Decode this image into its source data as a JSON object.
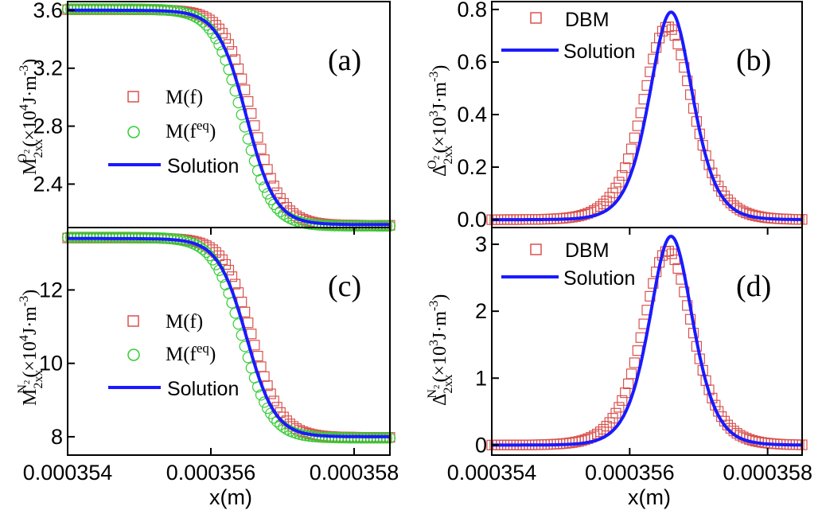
{
  "colors": {
    "dbm": "#d9534f",
    "feq": "#33cc33",
    "solution": "#1a1aff",
    "axis": "#000000"
  },
  "x_axis": {
    "label": "x(m)",
    "range": [
      0.000354,
      0.0003585
    ],
    "ticks": [
      0.000354,
      0.000356,
      0.000358
    ],
    "tick_labels": [
      "0.000354",
      "0.000356",
      "0.000358"
    ]
  },
  "chart_data": [
    {
      "id": "a",
      "type": "line",
      "panel_label": "(a)",
      "ylabel": "M2xx^O2 (×10^4 J·m^-3)",
      "ylim": [
        2.1,
        3.66
      ],
      "yticks": [
        2.4,
        2.8,
        3.2,
        3.6
      ],
      "ytick_labels": [
        "2.4",
        "2.8",
        "3.2",
        "3.6"
      ],
      "profile": {
        "kind": "tanh",
        "low": 2.12,
        "high": 3.6,
        "center": 0.0003565,
        "width": 4e-07
      },
      "series": [
        {
          "name": "M(f)",
          "marker": "square",
          "offset": 8e-08,
          "amp": 1.006
        },
        {
          "name": "M(f^eq)",
          "marker": "circle",
          "offset": -6e-08,
          "amp": 1.012
        },
        {
          "name": "Solution",
          "marker": "line",
          "offset": 0,
          "amp": 1.0
        }
      ],
      "legend": {
        "mf": "M(f)",
        "mfeq_base": "M(f",
        "mfeq_sup": "eq",
        "close": ")",
        "sol": "Solution"
      }
    },
    {
      "id": "b",
      "type": "line",
      "panel_label": "(b)",
      "ylabel": "Δ2xx^O2 (×10^3 J·m^-3)",
      "ylim": [
        -0.03,
        0.83
      ],
      "yticks": [
        0.0,
        0.2,
        0.4,
        0.6,
        0.8
      ],
      "ytick_labels": [
        "0.0",
        "0.2",
        "0.4",
        "0.6",
        "0.8"
      ],
      "profile": {
        "kind": "peak",
        "base": 0.0,
        "peak": 0.79,
        "center": 0.0003566,
        "width": 4.2e-07
      },
      "series": [
        {
          "name": "DBM",
          "marker": "square",
          "offset": -5e-08,
          "amp": 0.93,
          "widen": 1.15
        },
        {
          "name": "Solution",
          "marker": "line",
          "offset": 0,
          "amp": 1.0,
          "widen": 1.0
        }
      ],
      "legend": {
        "dbm": "DBM",
        "sol": "Solution"
      }
    },
    {
      "id": "c",
      "type": "line",
      "panel_label": "(c)",
      "ylabel": "M2xx^N2 (×10^4 J·m^-3)",
      "ylim": [
        7.5,
        13.7
      ],
      "yticks": [
        8,
        10,
        12
      ],
      "ytick_labels": [
        "8",
        "10",
        "12"
      ],
      "profile": {
        "kind": "tanh",
        "low": 8.0,
        "high": 13.4,
        "center": 0.0003565,
        "width": 4e-07
      },
      "series": [
        {
          "name": "M(f)",
          "marker": "square",
          "offset": 8e-08,
          "amp": 1.006
        },
        {
          "name": "M(f^eq)",
          "marker": "circle",
          "offset": -6e-08,
          "amp": 1.012
        },
        {
          "name": "Solution",
          "marker": "line",
          "offset": 0,
          "amp": 1.0
        }
      ],
      "legend": {
        "mf": "M(f)",
        "mfeq_base": "M(f",
        "mfeq_sup": "eq",
        "close": ")",
        "sol": "Solution"
      }
    },
    {
      "id": "d",
      "type": "line",
      "panel_label": "(d)",
      "ylabel": "Δ2xx^N2 (×10^3 J·m^-3)",
      "ylim": [
        -0.15,
        3.25
      ],
      "yticks": [
        0,
        1,
        2,
        3
      ],
      "ytick_labels": [
        "0",
        "1",
        "2",
        "3"
      ],
      "profile": {
        "kind": "peak",
        "base": 0.0,
        "peak": 3.12,
        "center": 0.0003566,
        "width": 4.2e-07
      },
      "series": [
        {
          "name": "DBM",
          "marker": "square",
          "offset": -5e-08,
          "amp": 0.93,
          "widen": 1.15
        },
        {
          "name": "Solution",
          "marker": "line",
          "offset": 0,
          "amp": 1.0,
          "widen": 1.0
        }
      ],
      "legend": {
        "dbm": "DBM",
        "sol": "Solution"
      }
    }
  ],
  "ylabel_parts": {
    "M": "M",
    "Delta": "Δ",
    "sub": "2xx",
    "O2": "O",
    "N2": "N",
    "two": "2",
    "pre4": "(×10",
    "exp4": "4",
    "pre3": "(×10",
    "exp3": "3",
    "unit": "J·m",
    "unitexp": "-3",
    "close": ")"
  }
}
